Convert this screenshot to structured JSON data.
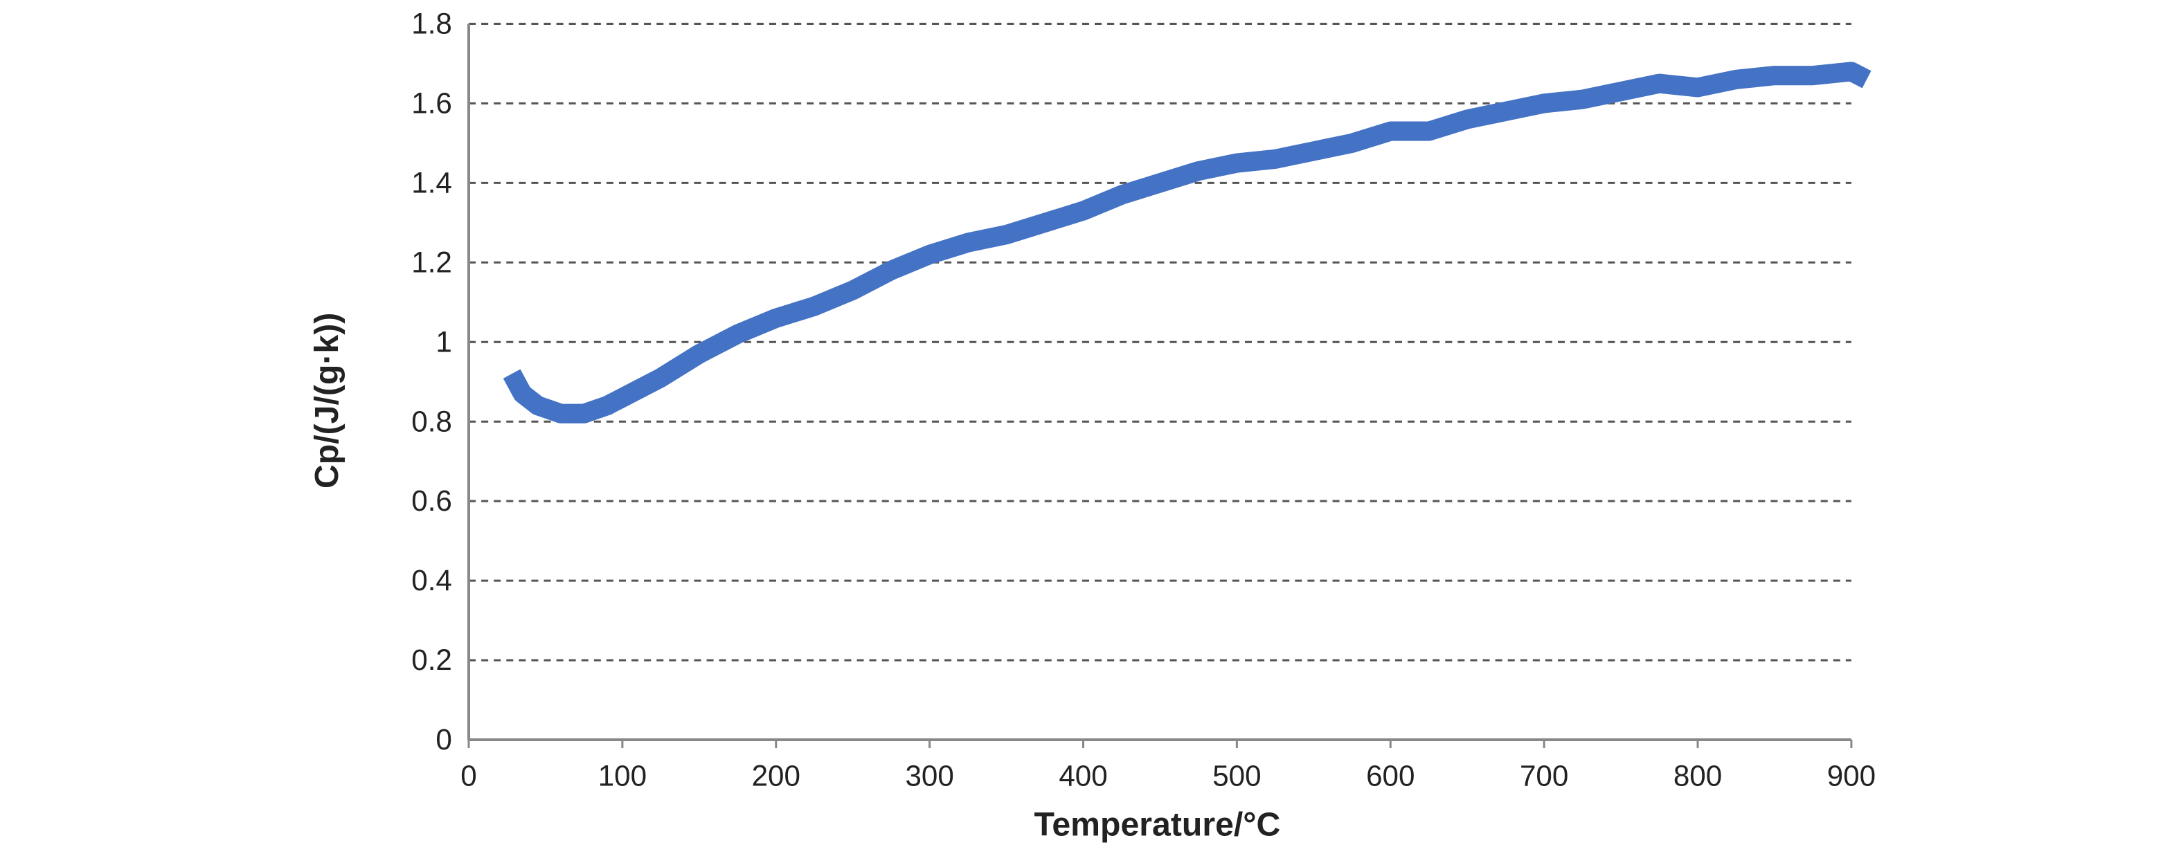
{
  "chart_data": {
    "type": "line",
    "xlabel": "Temperature/°C",
    "ylabel": "Cp/(J/(g·k))",
    "x": [
      28,
      35,
      45,
      60,
      75,
      90,
      100,
      125,
      150,
      175,
      200,
      225,
      250,
      275,
      300,
      325,
      350,
      375,
      400,
      425,
      450,
      475,
      500,
      525,
      550,
      575,
      600,
      625,
      650,
      675,
      700,
      725,
      750,
      775,
      800,
      825,
      850,
      875,
      900,
      910
    ],
    "series": [
      {
        "color": "#4472c4",
        "values": [
          0.92,
          0.87,
          0.84,
          0.82,
          0.82,
          0.84,
          0.86,
          0.91,
          0.97,
          1.02,
          1.06,
          1.09,
          1.13,
          1.18,
          1.22,
          1.25,
          1.27,
          1.3,
          1.33,
          1.37,
          1.4,
          1.43,
          1.45,
          1.46,
          1.48,
          1.5,
          1.53,
          1.53,
          1.56,
          1.58,
          1.6,
          1.61,
          1.63,
          1.65,
          1.64,
          1.66,
          1.67,
          1.67,
          1.68,
          1.66
        ]
      }
    ],
    "xlim": [
      0,
      900
    ],
    "xticks": [
      0,
      100,
      200,
      300,
      400,
      500,
      600,
      700,
      800,
      900
    ],
    "ylim": [
      0,
      1.8
    ],
    "yticks": [
      0,
      0.2,
      0.4,
      0.6,
      0.8,
      1,
      1.2,
      1.4,
      1.6,
      1.8
    ],
    "grid": true
  }
}
